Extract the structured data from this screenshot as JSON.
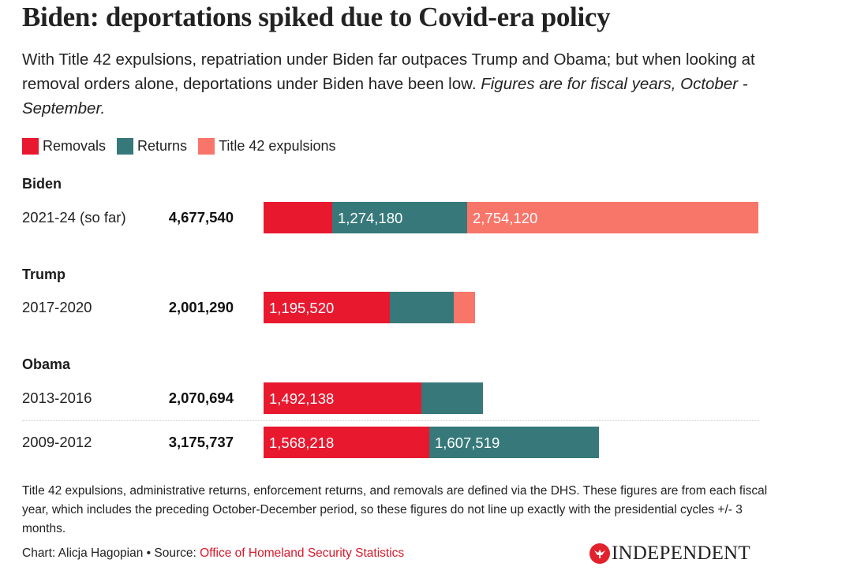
{
  "header": {
    "title": "Biden: deportations spiked due to Covid-era policy",
    "subtitle": "With Title 42 expulsions, repatriation under Biden far outpaces Trump and Obama; but when looking at removal orders alone, deportations under Biden have been low.",
    "subtitle_italic": "Figures are for fiscal years, October - September."
  },
  "colors": {
    "removals": "#e8182f",
    "returns": "#37797a",
    "title42": "#f8756a",
    "link": "#d8192b",
    "logo_red": "#e1222d"
  },
  "chart_data": {
    "type": "bar",
    "orientation": "horizontal",
    "stacked": true,
    "title": "Biden: deportations spiked due to Covid-era policy",
    "legend": [
      "Removals",
      "Returns",
      "Title 42 expulsions"
    ],
    "legend_position": "top-left",
    "groups": [
      {
        "name": "Biden",
        "rows": [
          {
            "label": "2021-24 (so far)",
            "total": 4677540,
            "total_label": "4,677,540",
            "segments": [
              {
                "series": "Removals",
                "value": 649240,
                "label": ""
              },
              {
                "series": "Returns",
                "value": 1274180,
                "label": "1,274,180"
              },
              {
                "series": "Title 42 expulsions",
                "value": 2754120,
                "label": "2,754,120"
              }
            ]
          }
        ]
      },
      {
        "name": "Trump",
        "rows": [
          {
            "label": "2017-2020",
            "total": 2001290,
            "total_label": "2,001,290",
            "segments": [
              {
                "series": "Removals",
                "value": 1195520,
                "label": "1,195,520"
              },
              {
                "series": "Returns",
                "value": 605000,
                "label": ""
              },
              {
                "series": "Title 42 expulsions",
                "value": 200770,
                "label": ""
              }
            ]
          }
        ]
      },
      {
        "name": "Obama",
        "rows": [
          {
            "label": "2013-2016",
            "total": 2070694,
            "total_label": "2,070,694",
            "segments": [
              {
                "series": "Removals",
                "value": 1492138,
                "label": "1,492,138"
              },
              {
                "series": "Returns",
                "value": 578556,
                "label": ""
              }
            ]
          },
          {
            "label": "2009-2012",
            "total": 3175737,
            "total_label": "3,175,737",
            "segments": [
              {
                "series": "Removals",
                "value": 1568218,
                "label": "1,568,218"
              },
              {
                "series": "Returns",
                "value": 1607519,
                "label": "1,607,519"
              }
            ]
          }
        ]
      }
    ],
    "xlim": [
      0,
      4677540
    ],
    "grid": false
  },
  "footer": {
    "note": "Title 42 expulsions, administrative returns, enforcement returns, and removals are defined via the DHS. These figures are from each fiscal year, which includes the preceding October-December period, so these figures do not line up exactly with the presidential cycles +/- 3 months.",
    "credit_prefix": "Chart: Alicja Hagopian • Source: ",
    "source_link": "Office of Homeland Security Statistics",
    "logo_text": "INDEPENDENT",
    "logo_icon": "eagle-icon"
  }
}
